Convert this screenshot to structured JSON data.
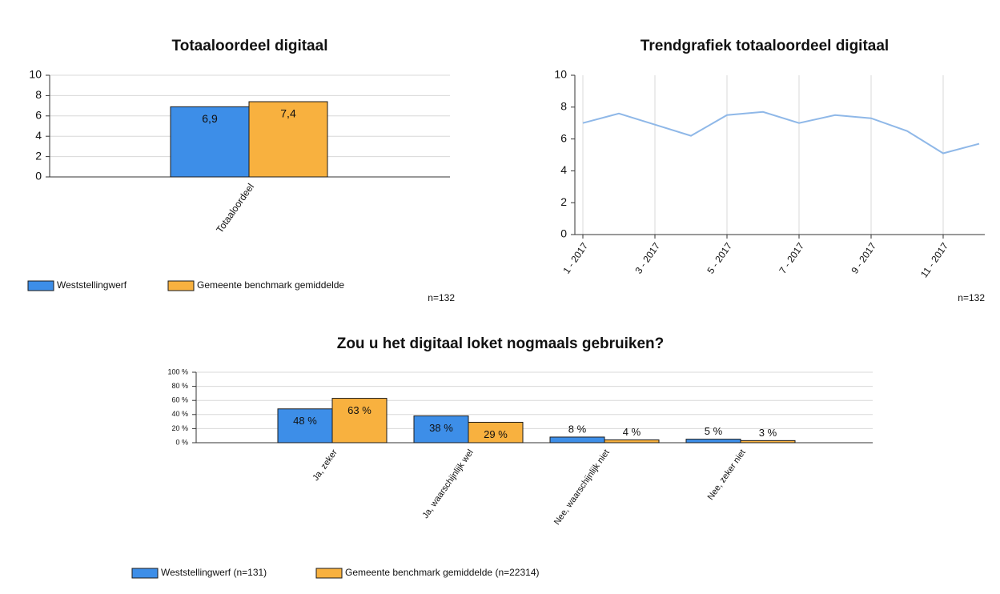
{
  "chart_data": [
    {
      "type": "bar",
      "title": "Totaaloordeel digitaal",
      "categories": [
        "Totaaloordeel"
      ],
      "series": [
        {
          "name": "Weststellingwerf",
          "color": "#3d8ee8",
          "values": [
            6.9
          ],
          "value_labels": [
            "6,9"
          ]
        },
        {
          "name": "Gemeente benchmark gemiddelde",
          "color": "#f8b13f",
          "values": [
            7.4
          ],
          "value_labels": [
            "7,4"
          ]
        }
      ],
      "ylim": [
        0,
        10
      ],
      "yticks": [
        0,
        2,
        4,
        6,
        8,
        10
      ],
      "grid": true,
      "note": "n=132"
    },
    {
      "type": "line",
      "title": "Trendgrafiek totaaloordeel digitaal",
      "x": [
        "1 - 2017",
        null,
        "3 - 2017",
        null,
        "5 - 2017",
        null,
        "7 - 2017",
        null,
        "9 - 2017",
        null,
        "11 - 2017",
        null
      ],
      "series": [
        {
          "color": "#8fb8e8",
          "values": [
            7.0,
            7.6,
            6.9,
            6.2,
            7.5,
            7.7,
            7.0,
            7.5,
            7.3,
            6.5,
            5.1,
            5.7
          ]
        }
      ],
      "ylim": [
        0,
        10
      ],
      "yticks": [
        0,
        2,
        4,
        6,
        8,
        10
      ],
      "grid": true,
      "note": "n=132"
    },
    {
      "type": "bar",
      "title": "Zou u het digitaal loket nogmaals gebruiken?",
      "categories": [
        "Ja, zeker",
        "Ja, waarschijnlijk wel",
        "Nee, waarschijnlijk niet",
        "Nee, zeker niet"
      ],
      "series": [
        {
          "name": "Weststellingwerf (n=131)",
          "color": "#3d8ee8",
          "values": [
            48,
            38,
            8,
            5
          ],
          "value_labels": [
            "48 %",
            "38 %",
            "8 %",
            "5 %"
          ]
        },
        {
          "name": "Gemeente benchmark gemiddelde (n=22314)",
          "color": "#f8b13f",
          "values": [
            63,
            29,
            4,
            3
          ],
          "value_labels": [
            "63 %",
            "29 %",
            "4 %",
            "3 %"
          ]
        }
      ],
      "ylim": [
        0,
        100
      ],
      "yticks": [
        {
          "value": 0,
          "label": "0 %"
        },
        {
          "value": 20,
          "label": "20 %"
        },
        {
          "value": 40,
          "label": "40 %"
        },
        {
          "value": 60,
          "label": "60 %"
        },
        {
          "value": 80,
          "label": "80 %"
        },
        {
          "value": 100,
          "label": "100 %"
        }
      ],
      "grid": true
    }
  ]
}
